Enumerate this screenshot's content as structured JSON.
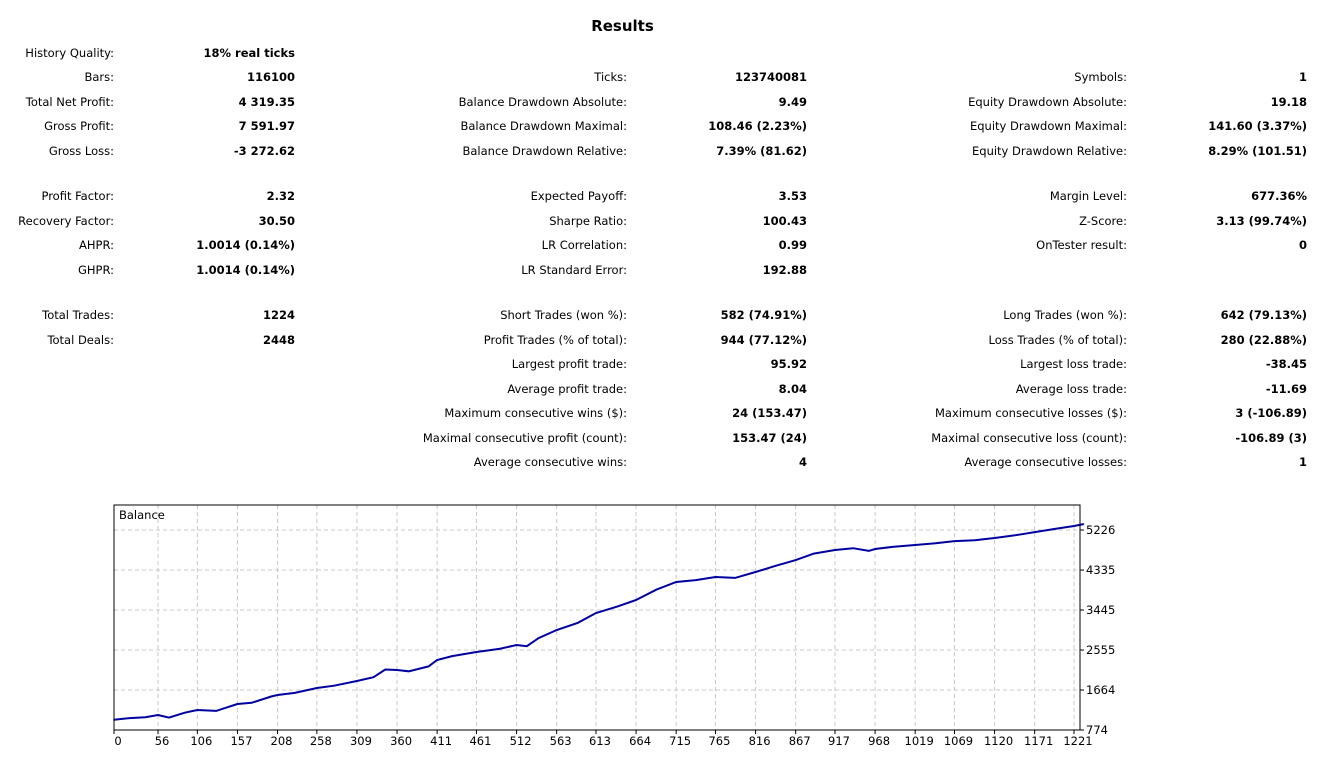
{
  "title": "Results",
  "rows": [
    [
      [
        "History Quality:",
        "18% real ticks"
      ],
      null,
      null
    ],
    [
      [
        "Bars:",
        "116100"
      ],
      [
        "Ticks:",
        "123740081"
      ],
      [
        "Symbols:",
        "1"
      ]
    ],
    [
      [
        "Total Net Profit:",
        "4 319.35"
      ],
      [
        "Balance Drawdown Absolute:",
        "9.49"
      ],
      [
        "Equity Drawdown Absolute:",
        "19.18"
      ]
    ],
    [
      [
        "Gross Profit:",
        "7 591.97"
      ],
      [
        "Balance Drawdown Maximal:",
        "108.46 (2.23%)"
      ],
      [
        "Equity Drawdown Maximal:",
        "141.60 (3.37%)"
      ]
    ],
    [
      [
        "Gross Loss:",
        "-3 272.62"
      ],
      [
        "Balance Drawdown Relative:",
        "7.39% (81.62)"
      ],
      [
        "Equity Drawdown Relative:",
        "8.29% (101.51)"
      ]
    ],
    [
      [
        "Profit Factor:",
        "2.32"
      ],
      [
        "Expected Payoff:",
        "3.53"
      ],
      [
        "Margin Level:",
        "677.36%"
      ]
    ],
    [
      [
        "Recovery Factor:",
        "30.50"
      ],
      [
        "Sharpe Ratio:",
        "100.43"
      ],
      [
        "Z-Score:",
        "3.13 (99.74%)"
      ]
    ],
    [
      [
        "AHPR:",
        "1.0014 (0.14%)"
      ],
      [
        "LR Correlation:",
        "0.99"
      ],
      [
        "OnTester result:",
        "0"
      ]
    ],
    [
      [
        "GHPR:",
        "1.0014 (0.14%)"
      ],
      [
        "LR Standard Error:",
        "192.88"
      ],
      null
    ],
    [
      [
        "Total Trades:",
        "1224"
      ],
      [
        "Short Trades (won %):",
        "582 (74.91%)"
      ],
      [
        "Long Trades (won %):",
        "642 (79.13%)"
      ]
    ],
    [
      [
        "Total Deals:",
        "2448"
      ],
      [
        "Profit Trades (% of total):",
        "944 (77.12%)"
      ],
      [
        "Loss Trades (% of total):",
        "280 (22.88%)"
      ]
    ],
    [
      null,
      [
        "Largest profit trade:",
        "95.92"
      ],
      [
        "Largest loss trade:",
        "-38.45"
      ]
    ],
    [
      null,
      [
        "Average profit trade:",
        "8.04"
      ],
      [
        "Average loss trade:",
        "-11.69"
      ]
    ],
    [
      null,
      [
        "Maximum consecutive wins ($):",
        "24 (153.47)"
      ],
      [
        "Maximum consecutive losses ($):",
        "3 (-106.89)"
      ]
    ],
    [
      null,
      [
        "Maximal consecutive profit (count):",
        "153.47 (24)"
      ],
      [
        "Maximal consecutive loss (count):",
        "-106.89 (3)"
      ]
    ],
    [
      null,
      [
        "Average consecutive wins:",
        "4"
      ],
      [
        "Average consecutive losses:",
        "1"
      ]
    ]
  ],
  "chart_data": {
    "type": "line",
    "title": "Balance",
    "xlabel": "",
    "ylabel": "",
    "xlim": [
      0,
      1233
    ],
    "ylim": [
      774,
      5781
    ],
    "grid": true,
    "x_ticks": [
      0,
      56,
      106,
      157,
      208,
      258,
      309,
      360,
      411,
      461,
      512,
      563,
      613,
      664,
      715,
      765,
      816,
      867,
      917,
      968,
      1019,
      1069,
      1120,
      1171,
      1221
    ],
    "y_ticks": [
      774,
      1664,
      2555,
      3445,
      4335,
      5226
    ],
    "color": "#0000a0",
    "series": [
      {
        "name": "Balance",
        "x": [
          0,
          20,
          40,
          56,
          70,
          90,
          106,
          130,
          157,
          175,
          200,
          208,
          230,
          258,
          280,
          309,
          330,
          345,
          360,
          375,
          400,
          411,
          430,
          461,
          490,
          512,
          525,
          540,
          563,
          590,
          613,
          640,
          664,
          690,
          715,
          740,
          765,
          790,
          816,
          840,
          867,
          890,
          917,
          940,
          960,
          968,
          990,
          1019,
          1045,
          1069,
          1095,
          1120,
          1150,
          1171,
          1200,
          1221,
          1233
        ],
        "y": [
          1000,
          1040,
          1060,
          1108,
          1050,
          1160,
          1219,
          1200,
          1353,
          1380,
          1520,
          1553,
          1600,
          1709,
          1760,
          1865,
          1950,
          2120,
          2110,
          2080,
          2190,
          2332,
          2420,
          2510,
          2580,
          2666,
          2640,
          2820,
          3000,
          3160,
          3378,
          3520,
          3667,
          3900,
          4068,
          4110,
          4179,
          4160,
          4290,
          4420,
          4557,
          4700,
          4780,
          4820,
          4760,
          4802,
          4850,
          4891,
          4930,
          4980,
          5000,
          5047,
          5120,
          5180,
          5260,
          5314,
          5358
        ]
      }
    ]
  }
}
